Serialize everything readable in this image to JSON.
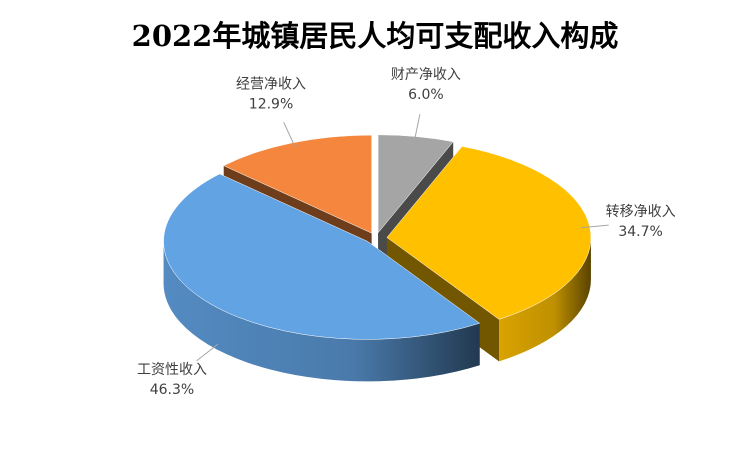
{
  "chart_data": {
    "type": "pie",
    "title": "2022年城镇居民人均可支配收入构成",
    "categories": [
      "财产净收入",
      "转移净收入",
      "工资性收入",
      "经营净收入"
    ],
    "values": [
      6.0,
      34.7,
      46.3,
      12.9
    ],
    "value_labels": [
      "6.0%",
      "34.7%",
      "46.3%",
      "12.9%"
    ],
    "colors": [
      "#a5a5a5",
      "#ffc000",
      "#62a3e4",
      "#f4873d"
    ]
  }
}
